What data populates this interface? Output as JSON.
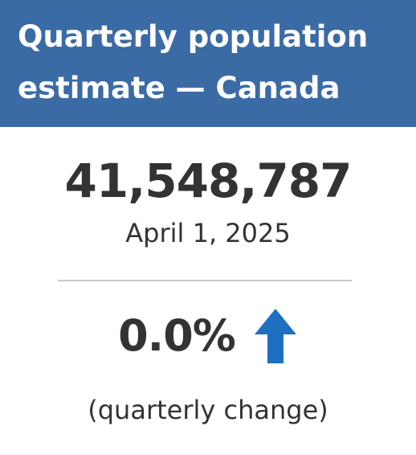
{
  "header": {
    "title": "Quarterly population estimate — Canada",
    "background_color": "#3b6ba5"
  },
  "estimate": {
    "population": "41,548,787",
    "date": "April 1, 2025"
  },
  "change": {
    "value": "0.0%",
    "direction_icon": "arrow-up-icon",
    "arrow_color": "#1f6fc1",
    "label": "(quarterly change)"
  }
}
